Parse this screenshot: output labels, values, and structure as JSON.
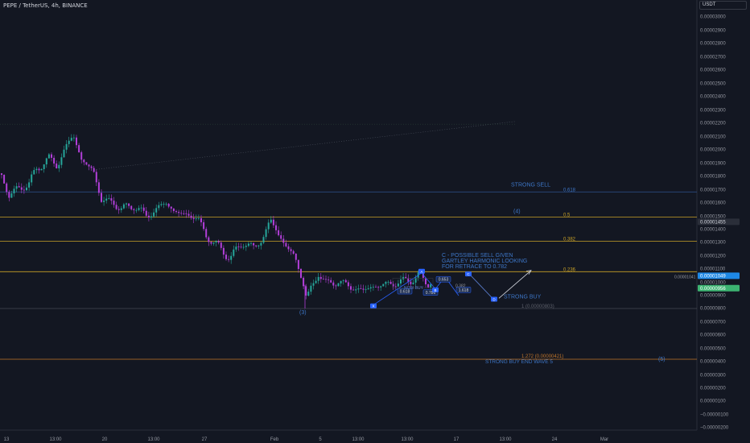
{
  "header": {
    "symbol_line": "PEPE / TetherUS, 4h, BINANCE",
    "currency_button": "USDT"
  },
  "colors": {
    "background": "#131722",
    "up": "#26a69a",
    "down": "#b23fd9",
    "fib_line": "#c9a227",
    "fib_orange": "#c2762a",
    "label_blue": "#2962ff",
    "text_blue": "#3d76c7",
    "price_tag_blue": "#1e88e5",
    "price_tag_green": "#3cb371"
  },
  "chart_data": {
    "type": "candlestick",
    "symbol": "PEPE / TetherUS",
    "interval": "4h",
    "exchange": "BINANCE",
    "y_axis": {
      "range": [
        -7e-07,
        3.1e-06
      ],
      "tick_labels": [
        "0.00003000",
        "0.00002900",
        "0.00002800",
        "0.00002700",
        "0.00002600",
        "0.00002500",
        "0.00002400",
        "0.00002300",
        "0.00002200",
        "0.00002100",
        "0.00002000",
        "0.00001900",
        "0.00001800",
        "0.00001700",
        "0.00001600",
        "0.00001500",
        "0.00001400",
        "0.00001300",
        "0.00001200",
        "0.00001100",
        "0.00001000",
        "0.00000900",
        "0.00000800",
        "0.00000700",
        "0.00000600",
        "0.00000500",
        "0.00000400",
        "0.00000300",
        "0.00000200",
        "0.00000100",
        "−0.00000100",
        "−0.00000200"
      ]
    },
    "x_axis": {
      "tick_labels": [
        "13",
        "13:00",
        "20",
        "13:00",
        "27",
        "Feb",
        "5",
        "13:00",
        "13:00",
        "17",
        "13:00",
        "24",
        "Mar"
      ]
    },
    "price_tags": [
      {
        "label": "0.00001455",
        "value": 1.455e-05,
        "style": "current"
      },
      {
        "label": "0.00001049",
        "value": 1.049e-05,
        "style": "blue"
      },
      {
        "label": "0.00000956",
        "value": 9.56e-06,
        "style": "green"
      },
      {
        "label": "0.00001041",
        "value": 1.041e-05,
        "style": "small"
      }
    ],
    "fib_levels": [
      {
        "ratio": "0.618",
        "value": 1.68e-05
      },
      {
        "ratio": "0.5",
        "value": 1.49e-05
      },
      {
        "ratio": "0.382",
        "value": 1.31e-05
      },
      {
        "ratio": "0.236",
        "value": 1.08e-05
      }
    ],
    "fib_extension": {
      "label": "1.272 (0.00000421)",
      "value": 4.21e-06
    },
    "low_label": "1 (0.00000803)",
    "annotations": {
      "strong_sell": "STRONG SELL",
      "wave4": "(4)",
      "wave3": "(3)",
      "wave5": "(5)",
      "possible_sell": "C - POSSIBLE SELL GIVEN GARTLEY HARMONIC LOOKING FOR RETRACE TO 0.782",
      "strong_buy": "STRONG BUY",
      "strong_buy_end": "STRONG BUY END WAVE 5",
      "buy_note": "NOW BUY"
    },
    "harmonic_points": [
      "X",
      "A",
      "B",
      "C",
      "D"
    ],
    "harmonic_ratios": [
      "0.653",
      "0.382",
      "0.618",
      "0.786",
      "1.618"
    ]
  }
}
